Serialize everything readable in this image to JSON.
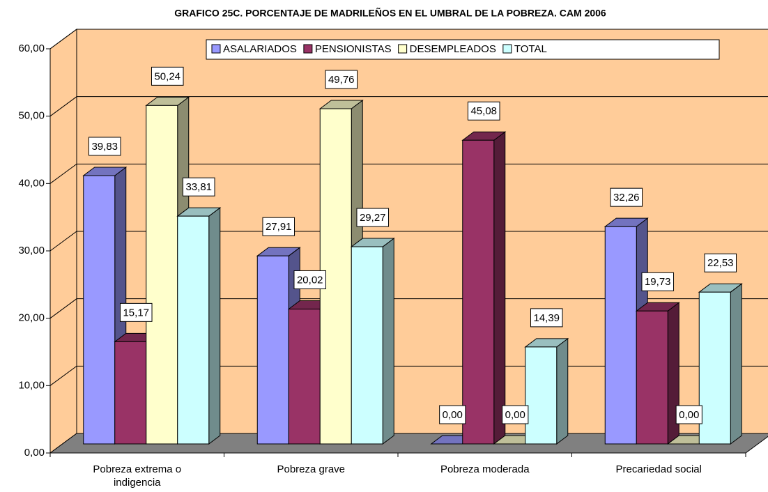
{
  "chart_data": {
    "type": "bar3d",
    "title": "GRAFICO 25C. PORCENTAJE DE MADRILEÑOS EN EL UMBRAL DE LA POBREZA. CAM 2006",
    "categories": [
      "Pobreza extrema o indigencia",
      "Pobreza grave",
      "Pobreza moderada",
      "Precariedad social"
    ],
    "series": [
      {
        "name": "ASALARIADOS",
        "color": "#9999FF",
        "values": [
          39.83,
          27.91,
          0,
          32.26
        ],
        "value_labels": [
          "39,83",
          "27,91",
          "0,00",
          "32,26"
        ]
      },
      {
        "name": "PENSIONISTAS",
        "color": "#993366",
        "values": [
          15.17,
          20.02,
          45.08,
          19.73
        ],
        "value_labels": [
          "15,17",
          "20,02",
          "45,08",
          "19,73"
        ]
      },
      {
        "name": "DESEMPLEADOS",
        "color": "#FFFFCC",
        "values": [
          50.24,
          49.76,
          0,
          0
        ],
        "value_labels": [
          "50,24",
          "49,76",
          "0,00",
          "0,00"
        ]
      },
      {
        "name": "TOTAL",
        "color": "#CCFFFF",
        "values": [
          33.81,
          29.27,
          14.39,
          22.53
        ],
        "value_labels": [
          "33,81",
          "29,27",
          "14,39",
          "22,53"
        ]
      }
    ],
    "ylim": [
      0,
      60
    ],
    "yticks": [
      {
        "value": 0,
        "label": "0,00"
      },
      {
        "value": 10,
        "label": "10,00"
      },
      {
        "value": 20,
        "label": "20,00"
      },
      {
        "value": 30,
        "label": "30,00"
      },
      {
        "value": 40,
        "label": "40,00"
      },
      {
        "value": 50,
        "label": "50,00"
      },
      {
        "value": 60,
        "label": "60,00"
      }
    ],
    "grid": true,
    "legend": "top"
  }
}
